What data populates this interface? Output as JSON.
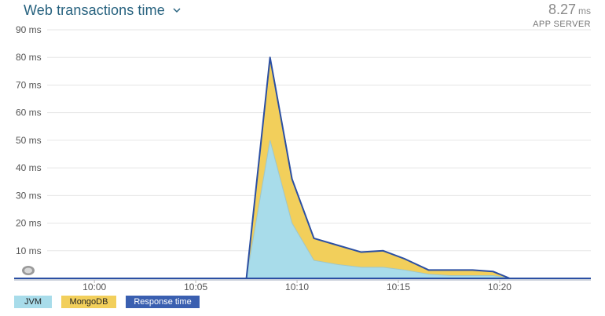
{
  "header": {
    "title": "Web transactions time",
    "summary_value": "8.27",
    "summary_unit": "ms",
    "summary_label": "APP SERVER"
  },
  "chart_data": {
    "type": "area",
    "x": [
      "10:07:30",
      "10:08:40",
      "10:09:45",
      "10:10:50",
      "10:12:00",
      "10:13:10",
      "10:14:15",
      "10:15:20",
      "10:16:30",
      "10:17:35",
      "10:18:40",
      "10:19:40",
      "10:20:30"
    ],
    "series": [
      {
        "name": "JVM",
        "values": [
          0,
          50,
          20,
          6.5,
          5,
          4,
          4,
          3,
          1.5,
          1,
          1,
          1,
          0
        ]
      },
      {
        "name": "MongoDB",
        "values": [
          0,
          30,
          16,
          8,
          7,
          5.5,
          6,
          4,
          1.5,
          2,
          2,
          1.5,
          0
        ]
      },
      {
        "name": "Response time",
        "values": [
          0,
          80,
          36,
          14.5,
          12,
          9.5,
          10,
          7,
          3,
          3,
          3,
          2.5,
          0
        ]
      }
    ],
    "x_ticks": [
      "10:00",
      "10:05",
      "10:10",
      "10:15",
      "10:20"
    ],
    "y_ticks": [
      "10 ms",
      "20 ms",
      "30 ms",
      "40 ms",
      "50 ms",
      "60 ms",
      "70 ms",
      "80 ms",
      "90 ms"
    ],
    "x_range": [
      "09:57:40",
      "10:24:30"
    ],
    "ylim": [
      0,
      90
    ],
    "grid": true,
    "legend": "bottom-left",
    "colors": {
      "jvm": "#a8dcea",
      "mongodb": "#f2cf5b",
      "response": "#2b4fa3"
    }
  },
  "legend": [
    {
      "label": "JVM",
      "color": "#a8dcea"
    },
    {
      "label": "MongoDB",
      "color": "#f2cf5b"
    },
    {
      "label": "Response time",
      "color": "#3a5fb0"
    }
  ]
}
